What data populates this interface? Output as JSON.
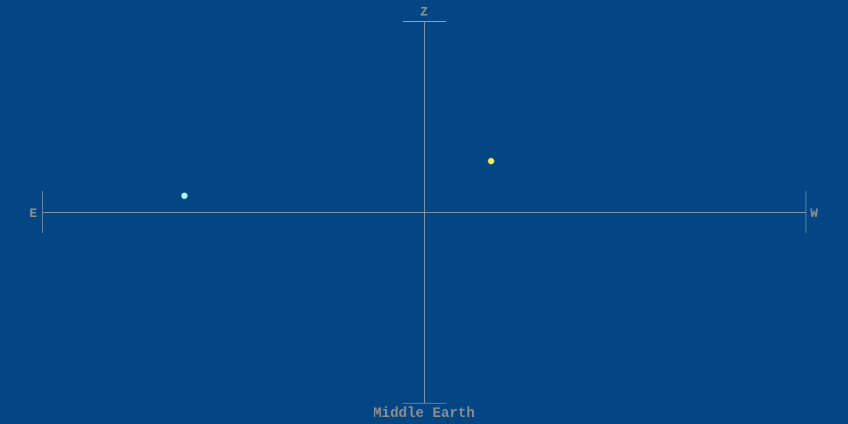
{
  "labels": {
    "top": "Z",
    "left": "E",
    "right": "W",
    "bottom": "Middle Earth"
  },
  "colors": {
    "background": "#044583",
    "axis": "#9aa7b3",
    "label": "#8a8f94"
  },
  "bodies": [
    {
      "name": "yellow-body",
      "color": "#f4ef5a"
    },
    {
      "name": "cyan-body",
      "color": "#aefcff"
    }
  ]
}
